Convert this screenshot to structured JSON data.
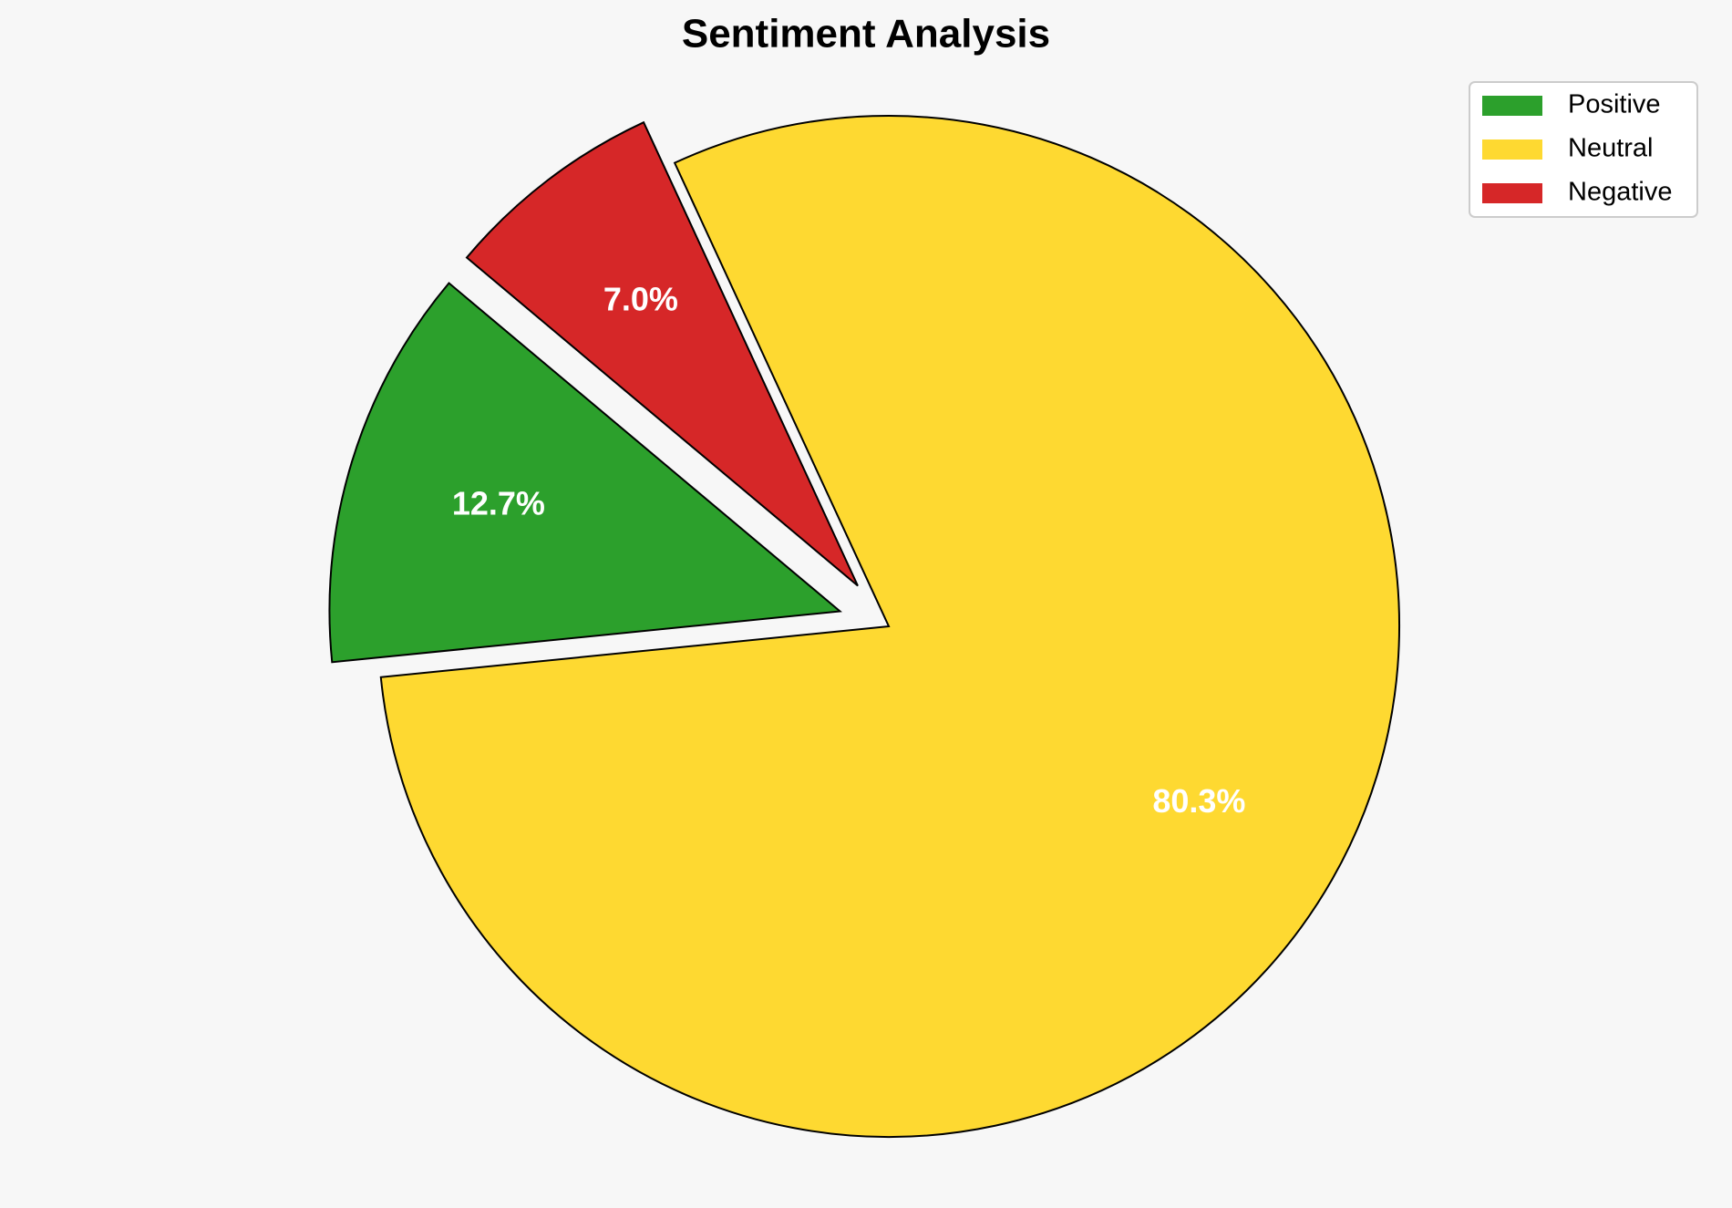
{
  "chart_data": {
    "type": "pie",
    "title": "Sentiment Analysis",
    "categories": [
      "Positive",
      "Neutral",
      "Negative"
    ],
    "values": [
      12.7,
      80.3,
      7.0
    ],
    "value_labels": [
      "12.7%",
      "80.3%",
      "7.0%"
    ],
    "colors": [
      "#2ca02c",
      "#fed931",
      "#d62728"
    ],
    "legend": "upper right"
  }
}
